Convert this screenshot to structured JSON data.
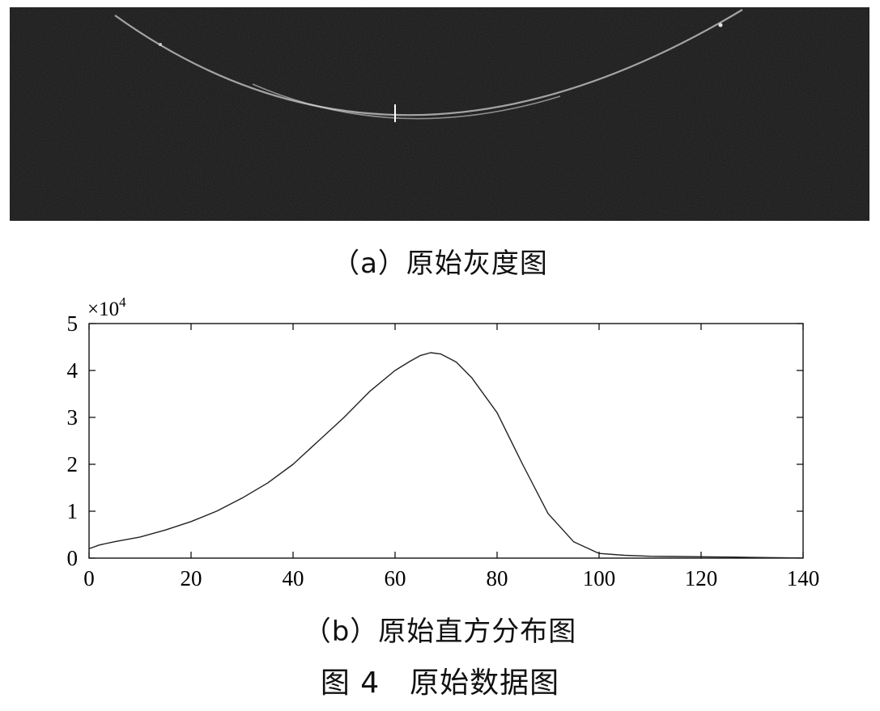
{
  "figure": {
    "panel_a_caption": "（a）原始灰度图",
    "panel_b_caption": "（b）原始直方分布图",
    "figure_caption": "图 4　原始数据图"
  },
  "colors": {
    "panel_background": "#141414",
    "arc": "#cfcfcf",
    "axis": "#000000",
    "line": "#222222"
  },
  "chart_data": {
    "type": "line",
    "title": "",
    "xlabel": "",
    "ylabel": "",
    "y_multiplier_base": "×10",
    "y_multiplier_exp": "4",
    "xlim": [
      0,
      140
    ],
    "ylim": [
      0,
      5
    ],
    "xticks": [
      0,
      20,
      40,
      60,
      80,
      100,
      120,
      140
    ],
    "yticks": [
      0,
      1,
      2,
      3,
      4,
      5
    ],
    "xtick_labels": [
      "0",
      "20",
      "40",
      "60",
      "80",
      "100",
      "120",
      "140"
    ],
    "ytick_labels": [
      "0",
      "1",
      "2",
      "3",
      "4",
      "5"
    ],
    "grid": false,
    "series": [
      {
        "x": [
          0,
          2,
          5,
          10,
          15,
          20,
          25,
          30,
          35,
          40,
          45,
          50,
          55,
          60,
          63,
          65,
          67,
          69,
          72,
          75,
          80,
          85,
          90,
          95,
          100,
          105,
          110,
          115,
          120,
          125,
          130,
          135,
          140
        ],
        "y": [
          0.2,
          0.28,
          0.35,
          0.45,
          0.6,
          0.78,
          1.0,
          1.28,
          1.6,
          2.0,
          2.5,
          3.0,
          3.55,
          4.0,
          4.2,
          4.32,
          4.38,
          4.35,
          4.18,
          3.85,
          3.1,
          2.0,
          0.95,
          0.35,
          0.1,
          0.06,
          0.04,
          0.035,
          0.03,
          0.025,
          0.015,
          0.008,
          0.004
        ]
      }
    ]
  }
}
